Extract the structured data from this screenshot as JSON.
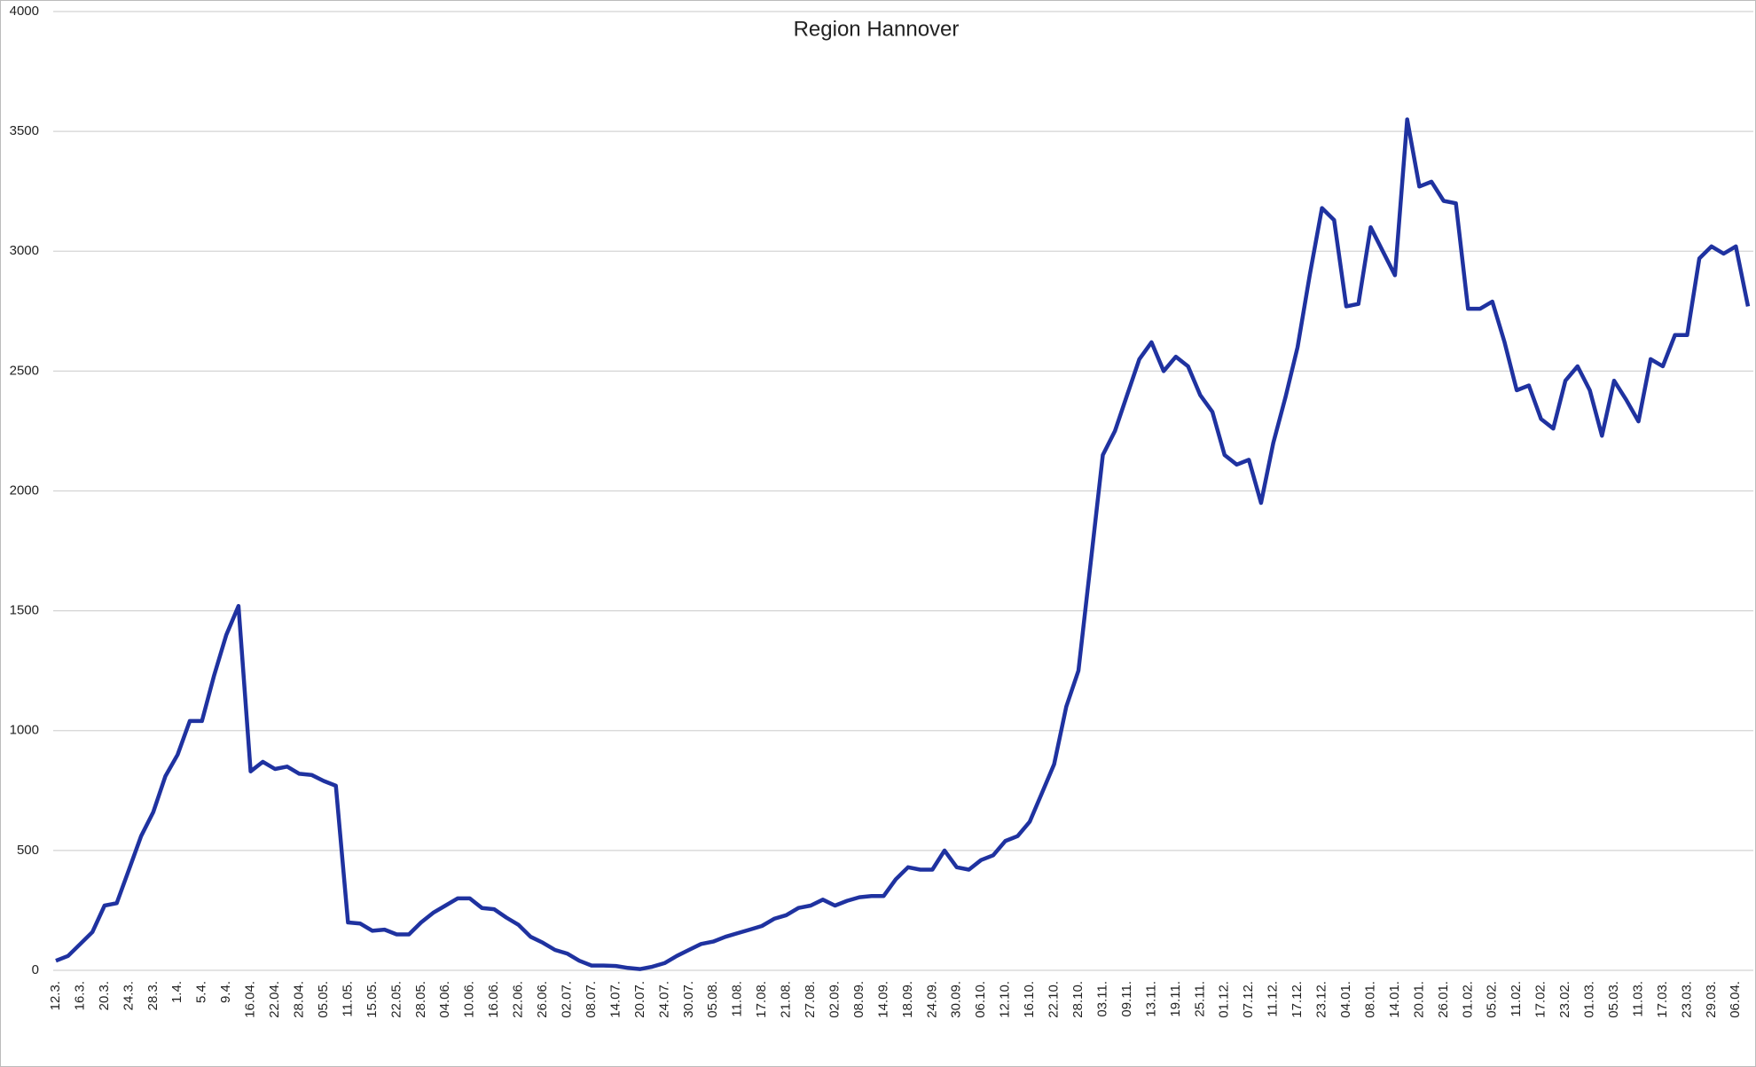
{
  "chart_data": {
    "type": "line",
    "title": "Region Hannover",
    "categories": [
      "12.3.",
      null,
      "16.3.",
      null,
      "20.3.",
      null,
      "24.3.",
      null,
      "28.3.",
      null,
      "1.4.",
      null,
      "5.4.",
      null,
      "9.4.",
      null,
      "16.04.",
      null,
      "22.04.",
      null,
      "28.04.",
      null,
      "05.05.",
      null,
      "11.05.",
      null,
      "15.05.",
      null,
      "22.05.",
      null,
      "28.05.",
      null,
      "04.06.",
      null,
      "10.06.",
      null,
      "16.06.",
      null,
      "22.06.",
      null,
      "26.06.",
      null,
      "02.07.",
      null,
      "08.07.",
      null,
      "14.07.",
      null,
      "20.07.",
      null,
      "24.07.",
      null,
      "30.07.",
      null,
      "05.08.",
      null,
      "11.08.",
      null,
      "17.08.",
      null,
      "21.08.",
      null,
      "27.08.",
      null,
      "02.09.",
      null,
      "08.09.",
      null,
      "14.09.",
      null,
      "18.09.",
      null,
      "24.09.",
      null,
      "30.09.",
      null,
      "06.10.",
      null,
      "12.10.",
      null,
      "16.10.",
      null,
      "22.10.",
      null,
      "28.10.",
      null,
      "03.11.",
      null,
      "09.11.",
      null,
      "13.11.",
      null,
      "19.11.",
      null,
      "25.11.",
      null,
      "01.12.",
      null,
      "07.12.",
      null,
      "11.12.",
      null,
      "17.12.",
      null,
      "23.12.",
      null,
      "04.01.",
      null,
      "08.01.",
      null,
      "14.01.",
      null,
      "20.01.",
      null,
      "26.01.",
      null,
      "01.02.",
      null,
      "05.02.",
      null,
      "11.02.",
      null,
      "17.02.",
      null,
      "23.02.",
      null,
      "01.03.",
      null,
      "05.03.",
      null,
      "11.03.",
      null,
      "17.03.",
      null,
      "23.03.",
      null,
      "29.03.",
      null,
      "06.04.",
      null
    ],
    "series": [
      {
        "color": "#1f32a0",
        "values": [
          40,
          60,
          110,
          160,
          270,
          280,
          420,
          560,
          660,
          810,
          900,
          1040,
          1040,
          1230,
          1400,
          1520,
          830,
          870,
          840,
          850,
          820,
          815,
          790,
          770,
          200,
          195,
          165,
          170,
          150,
          150,
          200,
          240,
          270,
          300,
          300,
          260,
          255,
          220,
          190,
          140,
          115,
          85,
          70,
          40,
          20,
          20,
          18,
          10,
          5,
          15,
          30,
          60,
          85,
          110,
          120,
          140,
          155,
          170,
          185,
          215,
          230,
          260,
          270,
          295,
          270,
          290,
          305,
          310,
          310,
          380,
          430,
          420,
          420,
          500,
          430,
          420,
          460,
          480,
          540,
          560,
          620,
          740,
          860,
          1100,
          1250,
          1700,
          2150,
          2250,
          2400,
          2550,
          2620,
          2500,
          2560,
          2520,
          2400,
          2330,
          2150,
          2110,
          2130,
          1950,
          2200,
          2390,
          2600,
          2900,
          3180,
          3130,
          2770,
          2780,
          3100,
          3000,
          2900,
          3550,
          3270,
          3290,
          3210,
          3200,
          2760,
          2760,
          2790,
          2620,
          2420,
          2440,
          2300,
          2260,
          2460,
          2520,
          2420,
          2230,
          2460,
          2380,
          2290,
          2550,
          2520,
          2650,
          2650,
          2970,
          3020,
          2990,
          3020,
          2770
        ]
      }
    ],
    "ylim": [
      0,
      4000
    ],
    "yticks": [
      0,
      500,
      1000,
      1500,
      2000,
      2500,
      3000,
      3500,
      4000
    ],
    "grid": true
  }
}
